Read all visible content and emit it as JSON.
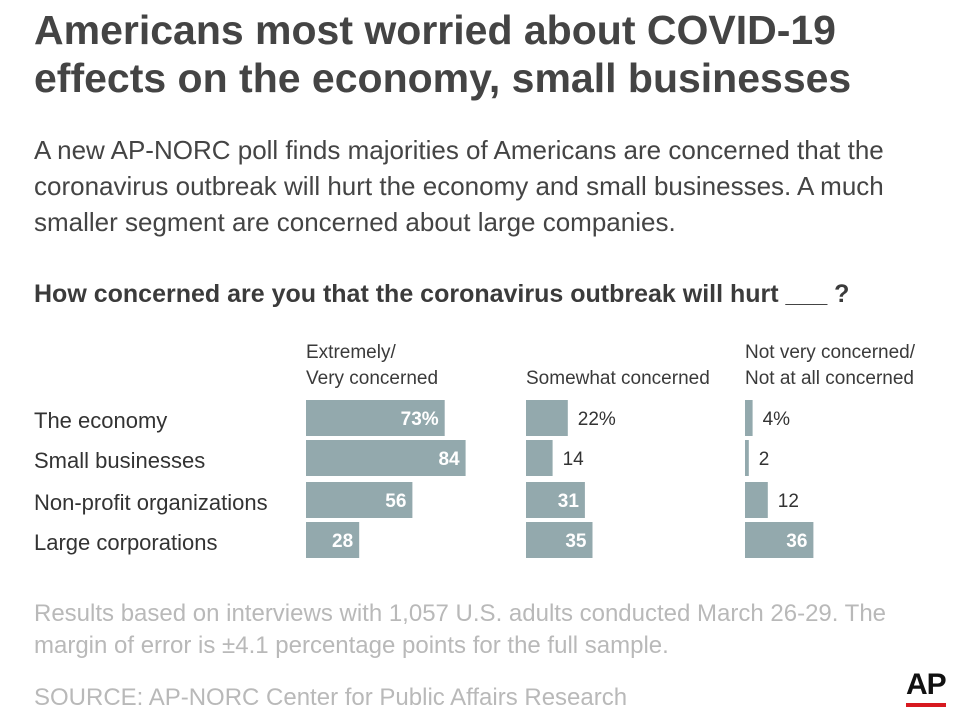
{
  "title": "Americans most worried about COVID-19 effects on the economy, small businesses",
  "subtitle": "A new AP-NORC poll finds majorities of Americans are concerned that the coronavirus outbreak will hurt the economy and small businesses. A much smaller segment are concerned about large companies.",
  "question": "How concerned are you that the coronavirus outbreak will hurt ___ ?",
  "note": "Results based on interviews with 1,057 U.S. adults conducted March 26-29. The margin of error is ±4.1 percentage points for the full sample.",
  "source": "SOURCE: AP-NORC Center for Public Affairs Research",
  "logo": "AP",
  "colors": {
    "bar": "#93a9ad",
    "logo_accent": "#d71920"
  },
  "chart_data": {
    "type": "bar",
    "orientation": "horizontal",
    "unit": "%",
    "categories": [
      "The economy",
      "Small businesses",
      "Non-profit organizations",
      "Large corporations"
    ],
    "series": [
      {
        "name": "Extremely/\nVery concerned",
        "name_lines": [
          "Extremely/",
          "Very concerned"
        ],
        "values": [
          73,
          84,
          56,
          28
        ],
        "labels": [
          "73%",
          "84",
          "56",
          "28"
        ]
      },
      {
        "name": "Somewhat concerned",
        "name_lines": [
          "Somewhat concerned"
        ],
        "values": [
          22,
          14,
          31,
          35
        ],
        "labels": [
          "22%",
          "14",
          "31",
          "35"
        ]
      },
      {
        "name": "Not very concerned/\nNot at all concerned",
        "name_lines": [
          "Not very concerned/",
          "Not at all concerned"
        ],
        "values": [
          4,
          2,
          12,
          36
        ],
        "labels": [
          "4%",
          "2",
          "12",
          "36"
        ]
      }
    ]
  }
}
